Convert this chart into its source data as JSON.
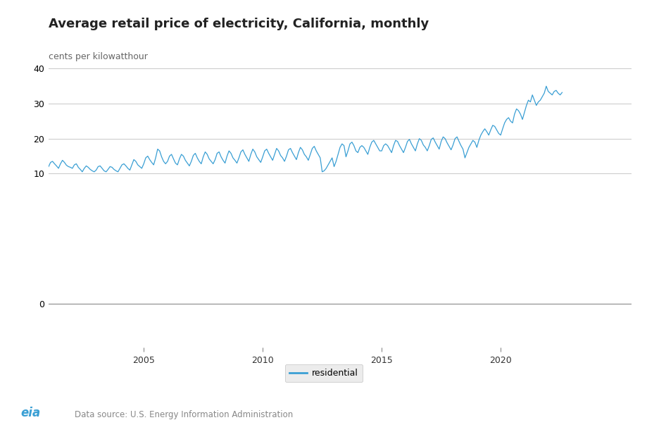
{
  "title": "Average retail price of electricity, California, monthly",
  "ylabel": "cents per kilowatthour",
  "line_color": "#3a9fd4",
  "line_label": "residential",
  "source_text": "Data source: U.S. Energy Information Administration",
  "upper_yticks": [
    10,
    20,
    30,
    40
  ],
  "x_ticks": [
    2005,
    2010,
    2015,
    2020
  ],
  "monthly_data": [
    12.0,
    13.2,
    13.5,
    12.8,
    12.2,
    11.5,
    12.8,
    13.8,
    13.2,
    12.4,
    12.0,
    11.8,
    11.5,
    12.5,
    12.8,
    11.8,
    11.2,
    10.5,
    11.5,
    12.2,
    11.8,
    11.2,
    10.8,
    10.5,
    11.0,
    12.0,
    12.2,
    11.5,
    10.8,
    10.5,
    11.2,
    12.0,
    11.8,
    11.2,
    10.8,
    10.5,
    11.5,
    12.5,
    12.8,
    12.2,
    11.5,
    11.0,
    12.5,
    14.0,
    13.5,
    12.5,
    12.0,
    11.5,
    12.8,
    14.5,
    15.0,
    14.0,
    13.2,
    12.5,
    14.5,
    17.0,
    16.5,
    14.8,
    13.5,
    12.8,
    13.5,
    15.0,
    15.5,
    14.2,
    13.0,
    12.5,
    14.2,
    15.5,
    15.0,
    13.8,
    13.0,
    12.2,
    13.5,
    15.2,
    15.8,
    14.5,
    13.5,
    12.8,
    14.8,
    16.2,
    15.5,
    14.2,
    13.5,
    12.8,
    14.0,
    15.8,
    16.2,
    14.8,
    13.8,
    13.0,
    15.0,
    16.5,
    15.8,
    14.5,
    13.8,
    13.0,
    14.5,
    16.2,
    16.8,
    15.5,
    14.5,
    13.5,
    15.5,
    17.0,
    16.2,
    14.8,
    14.0,
    13.2,
    14.8,
    16.5,
    17.0,
    15.8,
    14.8,
    13.8,
    15.5,
    17.2,
    16.5,
    15.2,
    14.5,
    13.5,
    15.0,
    16.8,
    17.2,
    16.0,
    15.0,
    14.0,
    16.0,
    17.5,
    16.8,
    15.5,
    14.8,
    13.8,
    15.5,
    17.2,
    17.8,
    16.5,
    15.5,
    14.5,
    10.5,
    10.8,
    11.5,
    12.5,
    13.5,
    14.5,
    12.0,
    13.5,
    15.5,
    17.5,
    18.5,
    18.0,
    14.8,
    16.5,
    18.5,
    19.0,
    18.0,
    16.5,
    16.0,
    17.5,
    18.0,
    17.5,
    16.5,
    15.5,
    17.5,
    19.0,
    19.5,
    18.5,
    17.5,
    16.5,
    16.5,
    18.0,
    18.5,
    18.0,
    17.0,
    16.0,
    18.0,
    19.5,
    19.2,
    18.0,
    17.0,
    16.0,
    17.5,
    19.2,
    19.8,
    18.5,
    17.5,
    16.5,
    18.5,
    20.0,
    19.5,
    18.2,
    17.5,
    16.5,
    18.0,
    19.8,
    20.2,
    19.0,
    18.0,
    17.0,
    19.2,
    20.5,
    20.0,
    18.8,
    17.8,
    16.8,
    18.2,
    20.0,
    20.5,
    19.2,
    18.0,
    17.0,
    14.5,
    16.0,
    17.5,
    18.5,
    19.5,
    19.0,
    17.5,
    19.5,
    21.0,
    22.0,
    22.8,
    22.0,
    21.0,
    22.5,
    23.8,
    23.5,
    22.5,
    21.5,
    21.0,
    22.8,
    24.5,
    25.5,
    26.0,
    25.0,
    24.5,
    27.0,
    28.5,
    28.0,
    27.0,
    25.5,
    27.5,
    29.5,
    31.0,
    30.5,
    32.5,
    31.0,
    29.5,
    30.5,
    31.0,
    32.0,
    33.0,
    35.0,
    33.5,
    33.0,
    32.5,
    33.5,
    33.8,
    33.0,
    32.5,
    33.2
  ]
}
